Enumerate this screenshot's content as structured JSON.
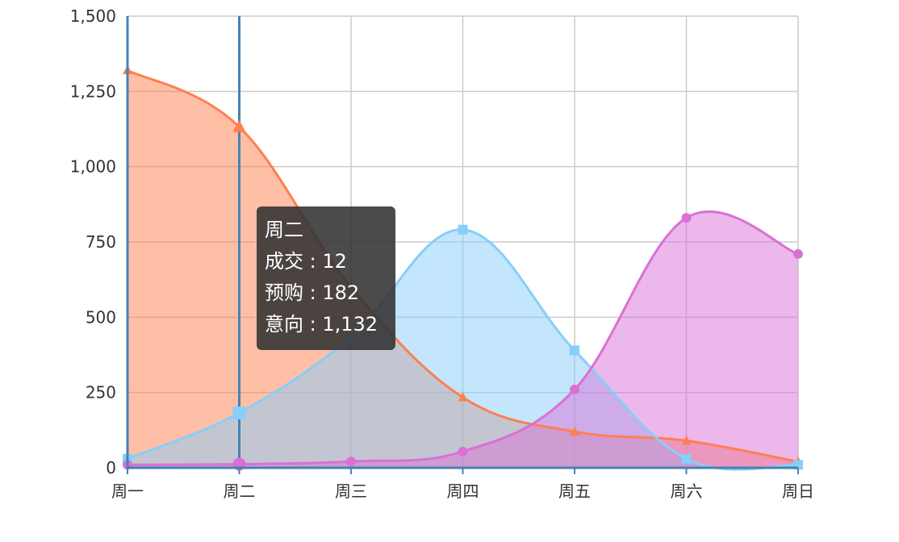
{
  "chart_data": {
    "type": "area",
    "smooth": true,
    "categories": [
      "周一",
      "周二",
      "周三",
      "周四",
      "周五",
      "周六",
      "周日"
    ],
    "ylim": [
      0,
      1500
    ],
    "yticks": [
      "0",
      "250",
      "500",
      "750",
      "1,000",
      "1,250",
      "1,500"
    ],
    "grid": true,
    "series": [
      {
        "name": "意向",
        "marker": "triangle",
        "color": "#ff7f50",
        "fill": "rgba(255,127,80,0.5)",
        "values": [
          1320,
          1132,
          601,
          234,
          120,
          90,
          20
        ]
      },
      {
        "name": "预购",
        "marker": "square",
        "color": "#87cefa",
        "fill": "rgba(135,206,250,0.5)",
        "values": [
          30,
          182,
          434,
          791,
          390,
          30,
          10
        ]
      },
      {
        "name": "成交",
        "marker": "circle",
        "color": "#da70d6",
        "fill": "rgba(218,112,214,0.5)",
        "values": [
          10,
          12,
          21,
          54,
          260,
          830,
          710
        ]
      }
    ],
    "axis_pointer_category": "周二"
  },
  "tooltip": {
    "title": "周二",
    "rows": [
      "成交 : 12",
      "预购 : 182",
      "意向 : 1,132"
    ]
  }
}
